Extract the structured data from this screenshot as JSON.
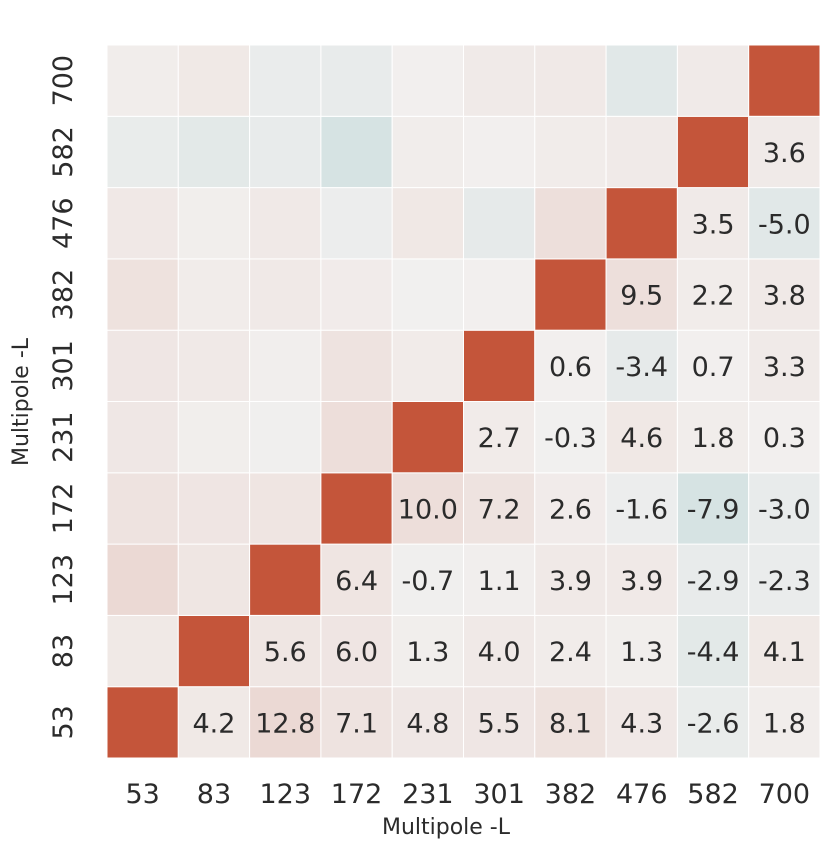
{
  "chart_data": {
    "type": "heatmap",
    "xlabel": "Multipole -L",
    "ylabel": "Multipole -L",
    "x_ticks": [
      "53",
      "83",
      "123",
      "172",
      "231",
      "301",
      "382",
      "476",
      "582",
      "700"
    ],
    "y_ticks": [
      "53",
      "83",
      "123",
      "172",
      "231",
      "301",
      "382",
      "476",
      "582",
      "700"
    ],
    "cells": [
      [
        "53",
        "83",
        4.2
      ],
      [
        "53",
        "123",
        12.8
      ],
      [
        "53",
        "172",
        7.1
      ],
      [
        "53",
        "231",
        4.8
      ],
      [
        "53",
        "301",
        5.5
      ],
      [
        "53",
        "382",
        8.1
      ],
      [
        "53",
        "476",
        4.3
      ],
      [
        "53",
        "582",
        -2.6
      ],
      [
        "53",
        "700",
        1.8
      ],
      [
        "83",
        "123",
        5.6
      ],
      [
        "83",
        "172",
        6.0
      ],
      [
        "83",
        "231",
        1.3
      ],
      [
        "83",
        "301",
        4.0
      ],
      [
        "83",
        "382",
        2.4
      ],
      [
        "83",
        "476",
        1.3
      ],
      [
        "83",
        "582",
        -4.4
      ],
      [
        "83",
        "700",
        4.1
      ],
      [
        "123",
        "172",
        6.4
      ],
      [
        "123",
        "231",
        -0.7
      ],
      [
        "123",
        "301",
        1.1
      ],
      [
        "123",
        "382",
        3.9
      ],
      [
        "123",
        "476",
        3.9
      ],
      [
        "123",
        "582",
        -2.9
      ],
      [
        "123",
        "700",
        -2.3
      ],
      [
        "172",
        "231",
        10.0
      ],
      [
        "172",
        "301",
        7.2
      ],
      [
        "172",
        "382",
        2.6
      ],
      [
        "172",
        "476",
        -1.6
      ],
      [
        "172",
        "582",
        -7.9
      ],
      [
        "172",
        "700",
        -3.0
      ],
      [
        "231",
        "301",
        2.7
      ],
      [
        "231",
        "382",
        -0.3
      ],
      [
        "231",
        "476",
        4.6
      ],
      [
        "231",
        "582",
        1.8
      ],
      [
        "231",
        "700",
        0.3
      ],
      [
        "301",
        "382",
        0.6
      ],
      [
        "301",
        "476",
        -3.4
      ],
      [
        "301",
        "582",
        0.7
      ],
      [
        "301",
        "700",
        3.3
      ],
      [
        "382",
        "476",
        9.5
      ],
      [
        "382",
        "582",
        2.2
      ],
      [
        "382",
        "700",
        3.8
      ],
      [
        "476",
        "582",
        3.5
      ],
      [
        "476",
        "700",
        -5.0
      ],
      [
        "582",
        "700",
        3.6
      ]
    ],
    "diagonal": "saturated",
    "colors": {
      "positive": "#c4553a",
      "neutral": "#f2f0ef",
      "negative": "#d6e3e3",
      "text": "#2b2b2b",
      "grid": "#ffffff"
    },
    "legend": false,
    "grid": true
  }
}
